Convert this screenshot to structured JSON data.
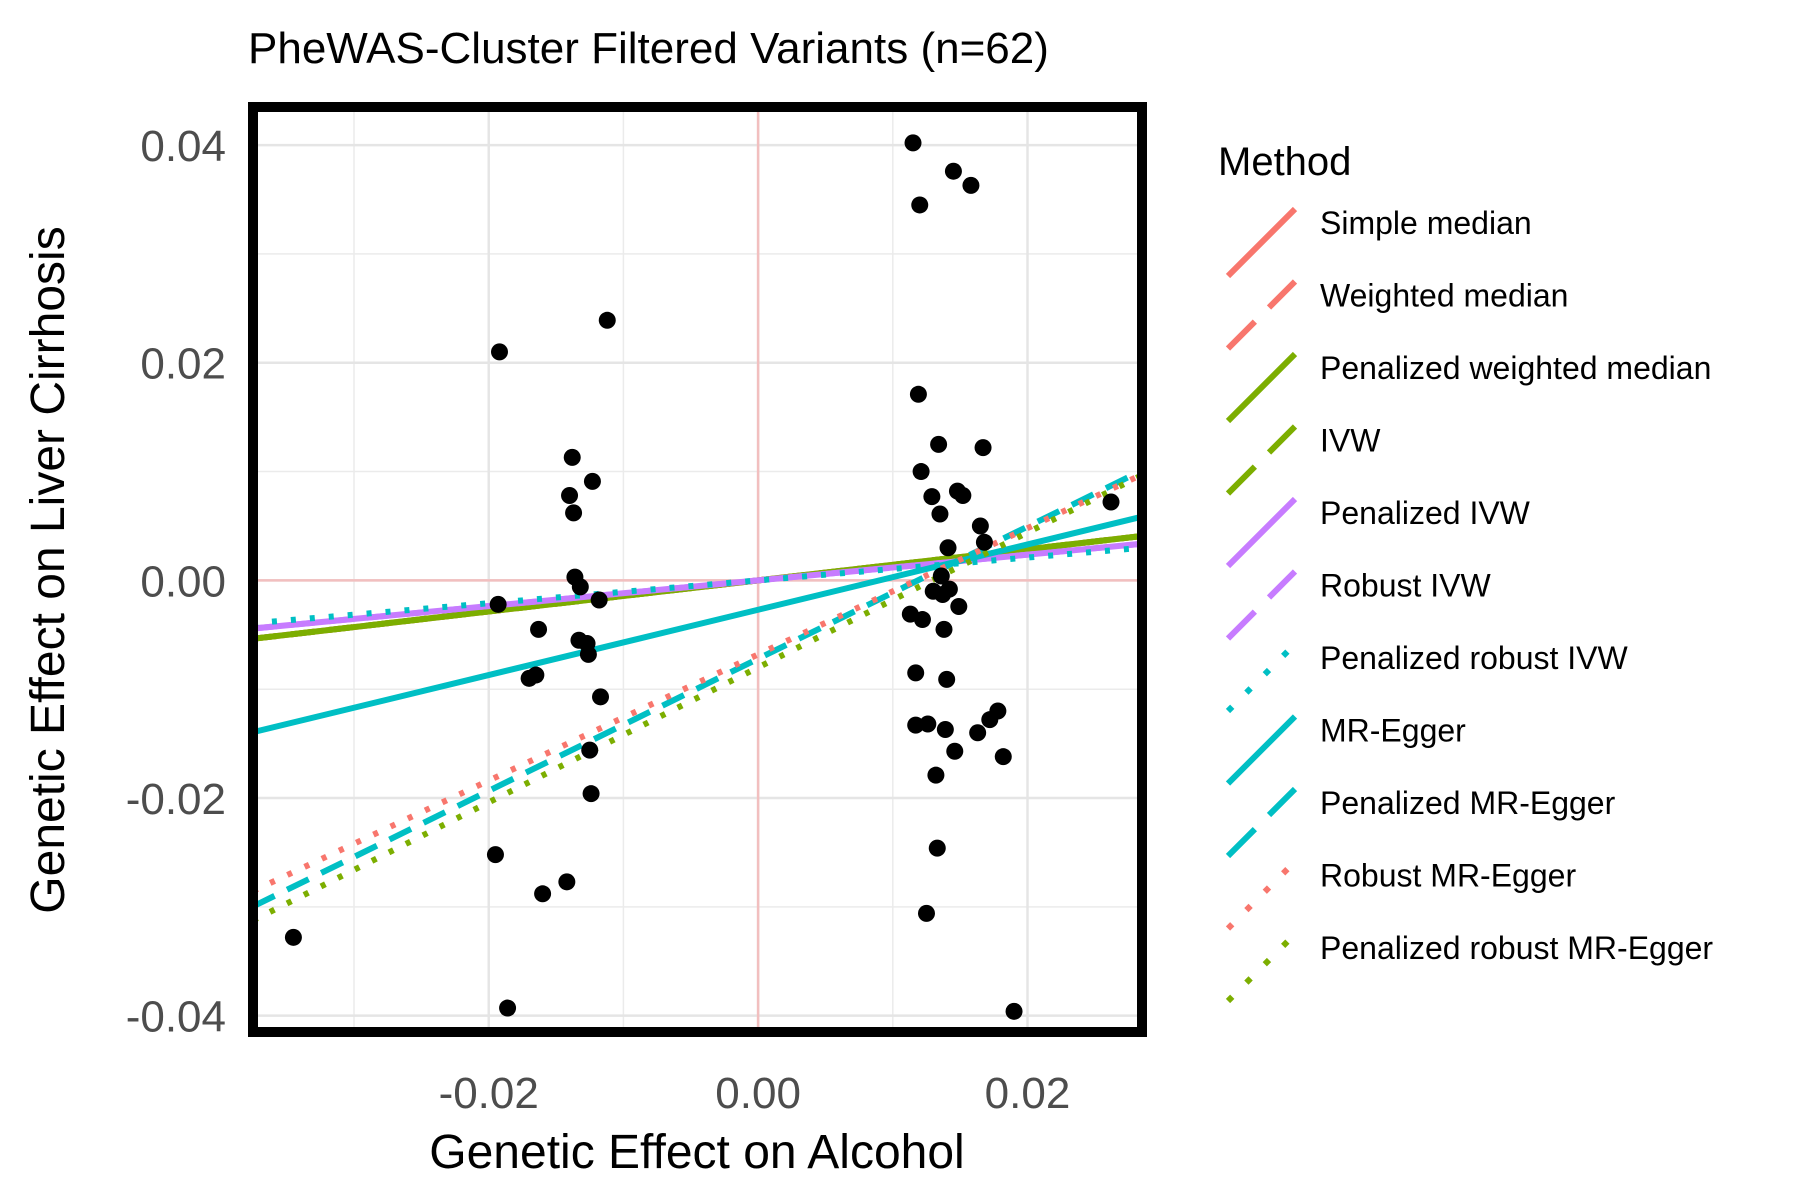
{
  "chart_data": {
    "type": "scatter",
    "title": "PheWAS-Cluster Filtered Variants (n=62)",
    "xlabel": "Genetic Effect on Alcohol",
    "ylabel": "Genetic Effect on Liver Cirrhosis",
    "xlim": [
      -0.0375,
      0.0285
    ],
    "ylim": [
      -0.0415,
      0.0435
    ],
    "xticks": [
      -0.02,
      0.0,
      0.02
    ],
    "xtick_labels": [
      "-0.02",
      "0.00",
      "0.02"
    ],
    "yticks": [
      -0.04,
      -0.02,
      0.0,
      0.02,
      0.04
    ],
    "ytick_labels": [
      "-0.04",
      "-0.02",
      "0.00",
      "0.02",
      "0.04"
    ],
    "grid": true,
    "reference_lines": {
      "x": 0,
      "y": 0,
      "color": "#f2bfbf"
    },
    "points": [
      {
        "x": -0.0345,
        "y": -0.0328
      },
      {
        "x": -0.0192,
        "y": 0.021
      },
      {
        "x": -0.0186,
        "y": -0.0393
      },
      {
        "x": -0.0195,
        "y": -0.0252
      },
      {
        "x": -0.0193,
        "y": -0.0022
      },
      {
        "x": -0.0163,
        "y": -0.0045
      },
      {
        "x": -0.017,
        "y": -0.009
      },
      {
        "x": -0.0165,
        "y": -0.0087
      },
      {
        "x": -0.016,
        "y": -0.0288
      },
      {
        "x": -0.0142,
        "y": -0.0277
      },
      {
        "x": -0.014,
        "y": 0.0078
      },
      {
        "x": -0.0138,
        "y": 0.0113
      },
      {
        "x": -0.0137,
        "y": 0.0062
      },
      {
        "x": -0.0136,
        "y": 0.0003
      },
      {
        "x": -0.0133,
        "y": -0.0055
      },
      {
        "x": -0.0132,
        "y": -0.0006
      },
      {
        "x": -0.0127,
        "y": -0.0058
      },
      {
        "x": -0.0126,
        "y": -0.0068
      },
      {
        "x": -0.0125,
        "y": -0.0156
      },
      {
        "x": -0.0124,
        "y": -0.0196
      },
      {
        "x": -0.0123,
        "y": 0.0091
      },
      {
        "x": -0.0118,
        "y": -0.0018
      },
      {
        "x": -0.0117,
        "y": -0.0107
      },
      {
        "x": -0.0112,
        "y": 0.0239
      },
      {
        "x": 0.0115,
        "y": 0.0402
      },
      {
        "x": 0.0113,
        "y": -0.0031
      },
      {
        "x": 0.0117,
        "y": -0.0133
      },
      {
        "x": 0.0117,
        "y": -0.0085
      },
      {
        "x": 0.0119,
        "y": 0.0171
      },
      {
        "x": 0.012,
        "y": 0.0345
      },
      {
        "x": 0.0121,
        "y": 0.01
      },
      {
        "x": 0.0122,
        "y": -0.0036
      },
      {
        "x": 0.0125,
        "y": -0.0306
      },
      {
        "x": 0.0126,
        "y": -0.0132
      },
      {
        "x": 0.0129,
        "y": 0.0077
      },
      {
        "x": 0.013,
        "y": -0.001
      },
      {
        "x": 0.0132,
        "y": -0.0179
      },
      {
        "x": 0.0133,
        "y": -0.0246
      },
      {
        "x": 0.0134,
        "y": 0.0125
      },
      {
        "x": 0.0135,
        "y": 0.0061
      },
      {
        "x": 0.0136,
        "y": 0.0004
      },
      {
        "x": 0.0137,
        "y": -0.0013
      },
      {
        "x": 0.0138,
        "y": -0.0045
      },
      {
        "x": 0.0139,
        "y": -0.0137
      },
      {
        "x": 0.014,
        "y": -0.0091
      },
      {
        "x": 0.0141,
        "y": 0.003
      },
      {
        "x": 0.0142,
        "y": -0.0008
      },
      {
        "x": 0.0145,
        "y": 0.0376
      },
      {
        "x": 0.0146,
        "y": -0.0157
      },
      {
        "x": 0.0148,
        "y": 0.0082
      },
      {
        "x": 0.0149,
        "y": -0.0024
      },
      {
        "x": 0.0152,
        "y": 0.0078
      },
      {
        "x": 0.0158,
        "y": 0.0363
      },
      {
        "x": 0.0163,
        "y": -0.014
      },
      {
        "x": 0.0165,
        "y": 0.005
      },
      {
        "x": 0.0167,
        "y": 0.0122
      },
      {
        "x": 0.0168,
        "y": 0.0035
      },
      {
        "x": 0.0172,
        "y": -0.0128
      },
      {
        "x": 0.0178,
        "y": -0.012
      },
      {
        "x": 0.0182,
        "y": -0.0162
      },
      {
        "x": 0.019,
        "y": -0.0396
      },
      {
        "x": 0.0262,
        "y": 0.0072
      }
    ],
    "legend": {
      "title": "Method",
      "placement": "right"
    },
    "series": [
      {
        "name": "Simple median",
        "color": "#f8766d",
        "linetype": "solid",
        "slope": 0.143,
        "intercept": 0.0
      },
      {
        "name": "Weighted median",
        "color": "#f8766d",
        "linetype": "dashed",
        "slope": 0.143,
        "intercept": 0.0
      },
      {
        "name": "Penalized weighted median",
        "color": "#7cae00",
        "linetype": "solid",
        "slope": 0.143,
        "intercept": 0.0
      },
      {
        "name": "IVW",
        "color": "#7cae00",
        "linetype": "dashed",
        "slope": 0.143,
        "intercept": 0.0
      },
      {
        "name": "Penalized IVW",
        "color": "#c77cff",
        "linetype": "solid",
        "slope": 0.118,
        "intercept": 0.0
      },
      {
        "name": "Robust IVW",
        "color": "#c77cff",
        "linetype": "dashed",
        "slope": 0.118,
        "intercept": 0.0
      },
      {
        "name": "Penalized robust IVW",
        "color": "#00bfc4",
        "linetype": "dotted",
        "slope": 0.105,
        "intercept": 0.0
      },
      {
        "name": "MR-Egger",
        "color": "#00bfc4",
        "linetype": "solid",
        "slope": 0.3,
        "intercept": -0.0027
      },
      {
        "name": "Penalized MR-Egger",
        "color": "#00bfc4",
        "linetype": "dashed",
        "slope": 0.607,
        "intercept": -0.0072
      },
      {
        "name": "Robust MR-Egger",
        "color": "#f8766d",
        "linetype": "dotted",
        "slope": 0.58,
        "intercept": -0.0068
      },
      {
        "name": "Penalized robust MR-Egger",
        "color": "#7cae00",
        "linetype": "dotted",
        "slope": 0.62,
        "intercept": -0.008
      }
    ]
  }
}
